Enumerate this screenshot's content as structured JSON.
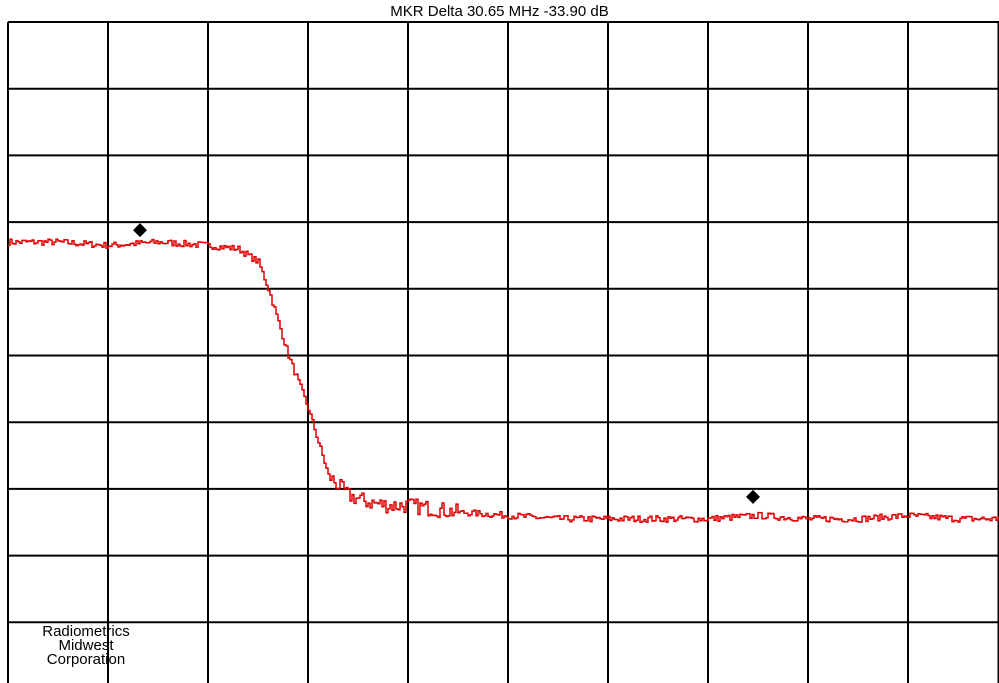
{
  "header": {
    "marker_readout": "MKR Delta  30.65 MHz  -33.90 dB"
  },
  "watermark": {
    "line1": "Radiometrics",
    "line2": "Midwest",
    "line3": "Corporation"
  },
  "colors": {
    "trace": "#e00000",
    "grid": "#000000",
    "marker": "#000000",
    "background": "#ffffff"
  },
  "chart_data": {
    "type": "line",
    "title": "MKR Delta  30.65 MHz  -33.90 dB",
    "xlabel": "",
    "ylabel": "",
    "grid": true,
    "divisions": {
      "x": 10,
      "y": 10
    },
    "xlim": [
      0,
      10
    ],
    "ylim": [
      0,
      10
    ],
    "series": [
      {
        "x": [
          0.0,
          0.5,
          1.0,
          1.5,
          2.0,
          2.3,
          2.5,
          2.6,
          2.7,
          2.8,
          2.9,
          3.0,
          3.1,
          3.2,
          3.4,
          3.6,
          3.8,
          4.0,
          4.5,
          5.0,
          5.5,
          6.0,
          6.5,
          7.0,
          7.5,
          8.0,
          8.5,
          9.0,
          9.5,
          10.0
        ],
        "y": [
          6.7,
          6.7,
          6.65,
          6.7,
          6.65,
          6.6,
          6.4,
          6.0,
          5.5,
          5.0,
          4.6,
          4.2,
          3.7,
          3.2,
          2.9,
          2.8,
          2.75,
          2.75,
          2.65,
          2.6,
          2.55,
          2.55,
          2.55,
          2.55,
          2.6,
          2.55,
          2.55,
          2.6,
          2.55,
          2.55
        ]
      }
    ],
    "markers": [
      {
        "x": 1.32,
        "y": 6.88
      },
      {
        "x": 7.45,
        "y": 2.88
      }
    ]
  }
}
